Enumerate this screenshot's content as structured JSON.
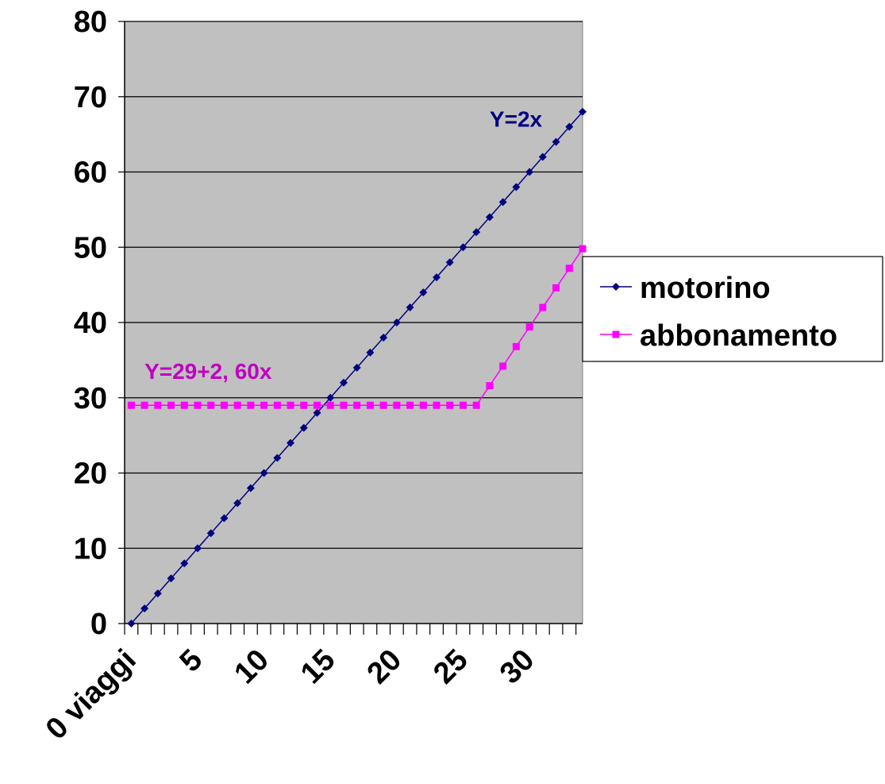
{
  "chart_data": {
    "type": "line",
    "x": [
      0,
      1,
      2,
      3,
      4,
      5,
      6,
      7,
      8,
      9,
      10,
      11,
      12,
      13,
      14,
      15,
      16,
      17,
      18,
      19,
      20,
      21,
      22,
      23,
      24,
      25,
      26,
      27,
      28,
      29,
      30,
      31,
      32,
      33,
      34
    ],
    "x_tick_labels": [
      {
        "x": 0,
        "label": "0 viaggi"
      },
      {
        "x": 5,
        "label": "5"
      },
      {
        "x": 10,
        "label": "10"
      },
      {
        "x": 15,
        "label": "15"
      },
      {
        "x": 20,
        "label": "20"
      },
      {
        "x": 25,
        "label": "25"
      },
      {
        "x": 30,
        "label": "30"
      }
    ],
    "ylim": [
      0,
      80
    ],
    "y_ticks": [
      0,
      10,
      20,
      30,
      40,
      50,
      60,
      70,
      80
    ],
    "grid": "horizontal",
    "legend_position": "right",
    "series": [
      {
        "name": "motorino",
        "color": "#000080",
        "marker": "diamond",
        "values": [
          0,
          2,
          4,
          6,
          8,
          10,
          12,
          14,
          16,
          18,
          20,
          22,
          24,
          26,
          28,
          30,
          32,
          34,
          36,
          38,
          40,
          42,
          44,
          46,
          48,
          50,
          52,
          54,
          56,
          58,
          60,
          62,
          64,
          66,
          68
        ]
      },
      {
        "name": "abbonamento",
        "color": "#ff00ff",
        "marker": "square",
        "values": [
          29,
          29,
          29,
          29,
          29,
          29,
          29,
          29,
          29,
          29,
          29,
          29,
          29,
          29,
          29,
          29,
          29,
          29,
          29,
          29,
          29,
          29,
          29,
          29,
          29,
          29,
          29,
          31.6,
          34.2,
          36.8,
          39.4,
          42,
          44.6,
          47.2,
          49.8
        ]
      }
    ],
    "annotations": [
      {
        "text": "Y=2x",
        "series": "motorino",
        "color": "#000080",
        "x": 27,
        "y": 66
      },
      {
        "text": "Y=29+2, 60x",
        "series": "abbonamento",
        "color": "#c000c0",
        "x": 1,
        "y": 32.5
      }
    ],
    "plot_background": "#c0c0c0",
    "gridline_color": "#000000"
  }
}
